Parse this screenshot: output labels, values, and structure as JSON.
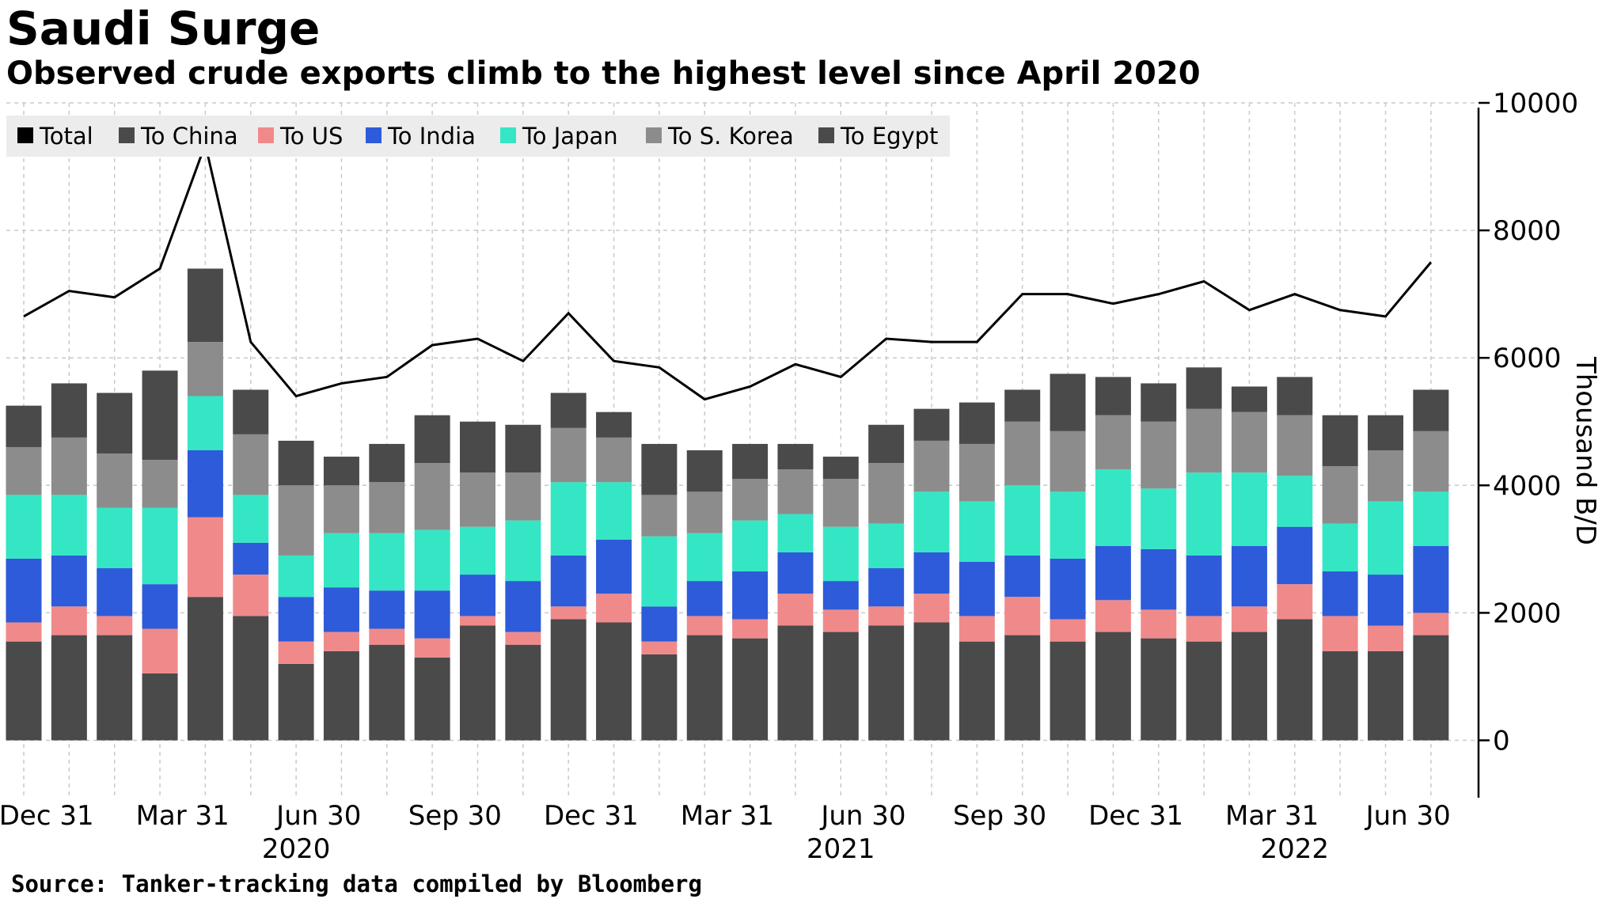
{
  "chart_data": {
    "type": "bar",
    "title": "Saudi Surge",
    "subtitle": "Observed crude exports climb to the highest level since April 2020",
    "source": "Source: Tanker-tracking data compiled by Bloomberg",
    "ylabel": "Thousand B/D",
    "ylim": [
      -900,
      10000
    ],
    "y_ticks": [
      0,
      2000,
      4000,
      6000,
      8000,
      10000
    ],
    "y_axis_side": "right",
    "grid": true,
    "legend_position": "top-left",
    "stacked": true,
    "x_tick_labels": [
      "Dec 31",
      "Mar 31",
      "Jun 30",
      "Sep 30",
      "Dec 31",
      "Mar 31",
      "Jun 30",
      "Sep 30",
      "Dec 31",
      "Mar 31",
      "Jun 30"
    ],
    "x_year_labels": [
      "2020",
      "2021",
      "2022"
    ],
    "series": [
      {
        "name": "Total",
        "type": "line",
        "color": "#000000",
        "values": [
          6650,
          7050,
          6950,
          7400,
          9350,
          6250,
          5400,
          5600,
          5700,
          6200,
          6300,
          5950,
          6700,
          5950,
          5850,
          5350,
          5550,
          5900,
          5700,
          6300,
          6250,
          6250,
          7000,
          7000,
          6850,
          7000,
          7200,
          6750,
          7000,
          6750,
          6650,
          7500
        ]
      },
      {
        "name": "To China",
        "type": "bar",
        "color": "#4a4a4a",
        "values": [
          1550,
          1650,
          1650,
          1050,
          2250,
          1950,
          1200,
          1400,
          1500,
          1300,
          1800,
          1500,
          1900,
          1850,
          1350,
          1650,
          1600,
          1800,
          1700,
          1800,
          1850,
          1550,
          1650,
          1550,
          1700,
          1600,
          1550,
          1700,
          1900,
          1400,
          1400,
          1650
        ]
      },
      {
        "name": "To US",
        "type": "bar",
        "color": "#f08a8a",
        "values": [
          300,
          450,
          300,
          700,
          1250,
          650,
          350,
          300,
          250,
          300,
          150,
          200,
          200,
          450,
          200,
          300,
          300,
          500,
          350,
          300,
          450,
          400,
          600,
          350,
          500,
          450,
          400,
          400,
          550,
          550,
          400,
          350
        ]
      },
      {
        "name": "To India",
        "type": "bar",
        "color": "#2e5bd9",
        "values": [
          1000,
          800,
          750,
          700,
          1050,
          500,
          700,
          700,
          600,
          750,
          650,
          800,
          800,
          850,
          550,
          550,
          750,
          650,
          450,
          600,
          650,
          850,
          650,
          950,
          850,
          950,
          950,
          950,
          900,
          700,
          800,
          1050
        ]
      },
      {
        "name": "To Japan",
        "type": "bar",
        "color": "#34e6c4",
        "values": [
          1000,
          950,
          950,
          1200,
          850,
          750,
          650,
          850,
          900,
          950,
          750,
          950,
          1150,
          900,
          1100,
          750,
          800,
          600,
          850,
          700,
          950,
          950,
          1100,
          1050,
          1200,
          950,
          1300,
          1150,
          800,
          750,
          1150,
          850
        ]
      },
      {
        "name": "To S. Korea",
        "type": "bar",
        "color": "#8c8c8c",
        "values": [
          750,
          900,
          850,
          750,
          850,
          950,
          1100,
          750,
          800,
          1050,
          850,
          750,
          850,
          700,
          650,
          650,
          650,
          700,
          750,
          950,
          800,
          900,
          1000,
          950,
          850,
          1050,
          1000,
          950,
          950,
          900,
          800,
          950
        ]
      },
      {
        "name": "To Egypt",
        "type": "bar",
        "color": "#4a4a4a",
        "values": [
          650,
          850,
          950,
          1400,
          1150,
          700,
          700,
          450,
          600,
          750,
          800,
          750,
          550,
          400,
          800,
          650,
          550,
          400,
          350,
          600,
          500,
          650,
          500,
          900,
          600,
          600,
          650,
          400,
          600,
          800,
          550,
          650
        ]
      }
    ]
  }
}
